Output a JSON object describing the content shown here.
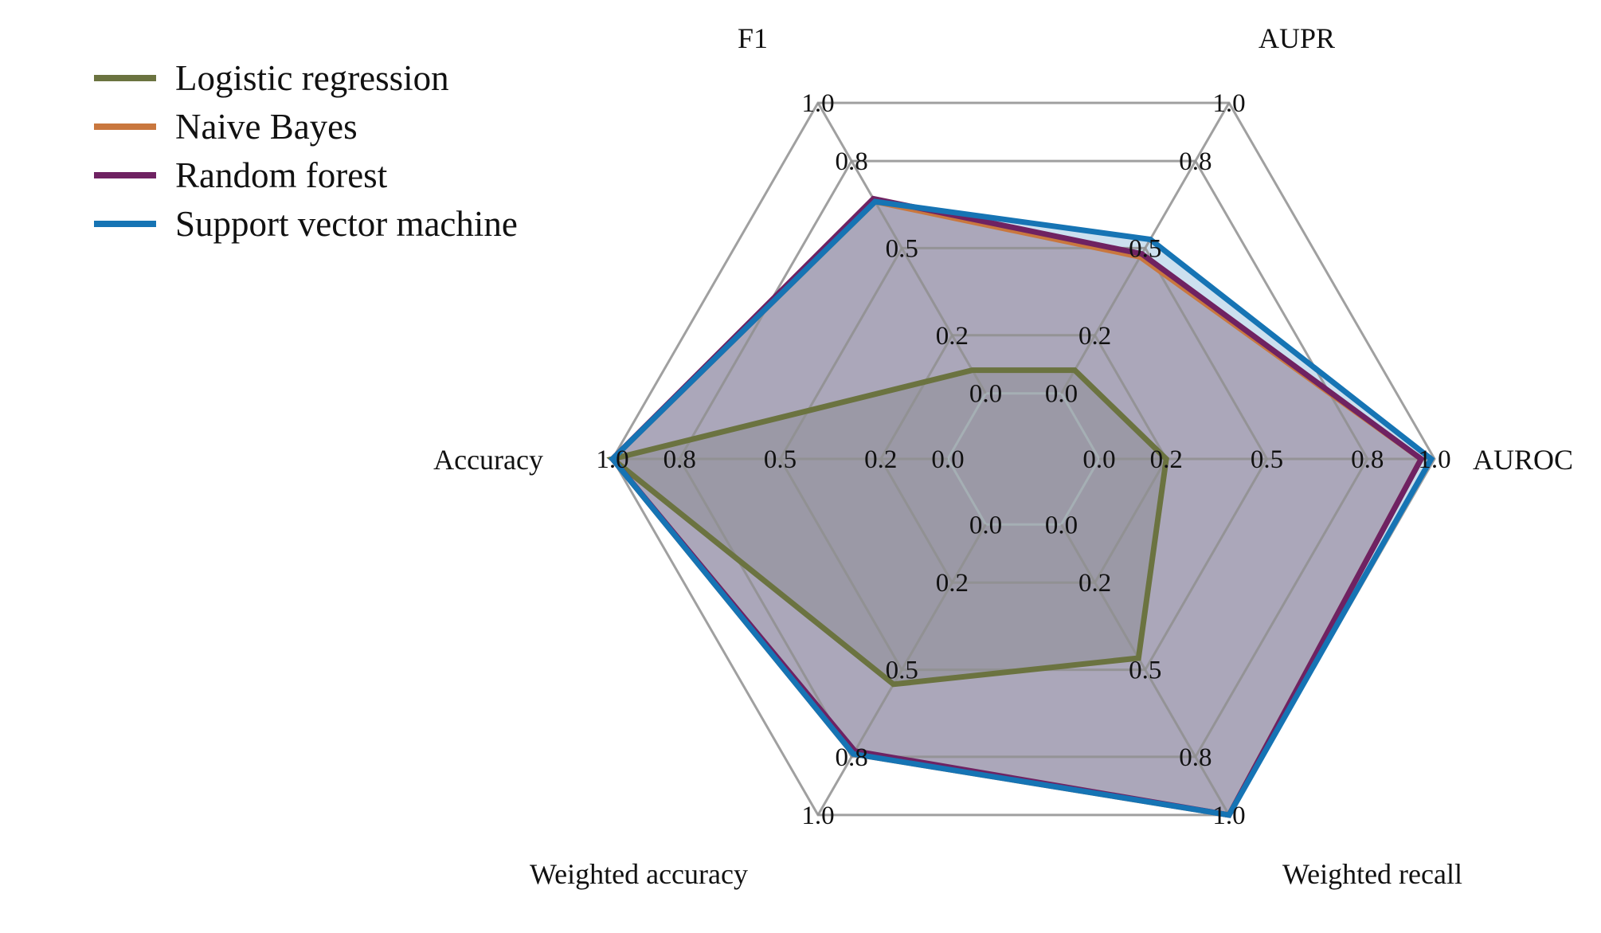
{
  "chart_data": {
    "type": "radar",
    "axes": [
      "AUROC",
      "AUPR",
      "F1",
      "Accuracy",
      "Weighted accuracy",
      "Weighted recall"
    ],
    "rings": [
      0.0,
      0.2,
      0.5,
      0.8,
      1.0
    ],
    "ring_labels": [
      "0.0",
      "0.2",
      "0.5",
      "0.8",
      "1.0"
    ],
    "range": [
      0,
      1
    ],
    "legend_placement": "top-left",
    "grid": true,
    "colors": {
      "ring": "#8f8f8f",
      "ring_inner": "#a6b1b6"
    },
    "series": [
      {
        "name": "Logistic regression",
        "color": "#6b7340",
        "values": [
          0.2,
          0.08,
          0.08,
          1.0,
          0.55,
          0.46
        ]
      },
      {
        "name": "Naive Bayes",
        "color": "#c9773e",
        "values": [
          0.96,
          0.47,
          0.66,
          1.0,
          0.79,
          1.0
        ]
      },
      {
        "name": "Random forest",
        "color": "#6f2262",
        "values": [
          0.96,
          0.48,
          0.67,
          1.0,
          0.78,
          1.0
        ]
      },
      {
        "name": "Support vector machine",
        "color": "#1674b4",
        "values": [
          0.99,
          0.53,
          0.66,
          1.0,
          0.79,
          1.0
        ]
      }
    ]
  }
}
